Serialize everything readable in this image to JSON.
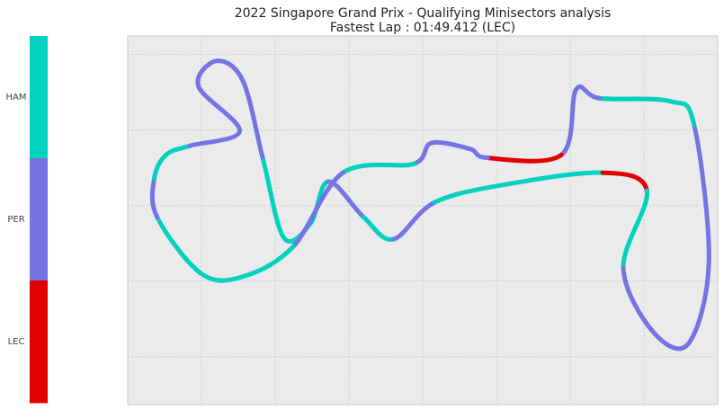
{
  "chart_data": {
    "type": "line",
    "title": "2022 Singapore Grand Prix - Qualifying Minisectors analysis",
    "subtitle": "Fastest Lap : 01:49.412 (LEC)",
    "xlabel": "",
    "ylabel": "",
    "grid": true,
    "axes_ticks_labels": false,
    "xlim": [
      0,
      1000
    ],
    "ylim": [
      0,
      620
    ],
    "colorbar": {
      "position": "left",
      "labels": [
        "HAM",
        "PER",
        "LEC"
      ],
      "colors": [
        "#00d2be",
        "#7474e5",
        "#e00000"
      ]
    },
    "drivers": {
      "HAM": "#00d2be",
      "PER": "#7474e5",
      "LEC": "#e00000"
    },
    "track_path": [
      [
        190,
        160
      ],
      [
        120,
        85
      ],
      [
        150,
        42
      ],
      [
        195,
        75
      ],
      [
        230,
        210
      ],
      [
        265,
        340
      ],
      [
        310,
        315
      ],
      [
        340,
        245
      ],
      [
        400,
        305
      ],
      [
        450,
        342
      ],
      [
        520,
        280
      ],
      [
        640,
        250
      ],
      [
        805,
        230
      ],
      [
        880,
        260
      ],
      [
        840,
        390
      ],
      [
        890,
        497
      ],
      [
        950,
        518
      ],
      [
        985,
        380
      ],
      [
        960,
        150
      ],
      [
        920,
        110
      ],
      [
        800,
        105
      ],
      [
        760,
        90
      ],
      [
        735,
        200
      ],
      [
        610,
        205
      ],
      [
        580,
        190
      ],
      [
        515,
        180
      ],
      [
        485,
        215
      ],
      [
        365,
        230
      ],
      [
        280,
        355
      ],
      [
        195,
        405
      ],
      [
        125,
        400
      ],
      [
        50,
        305
      ],
      [
        45,
        240
      ],
      [
        65,
        200
      ],
      [
        105,
        185
      ],
      [
        190,
        160
      ]
    ],
    "minisectors": [
      {
        "driver": "PER",
        "from": [
          190,
          160
        ],
        "to": [
          230,
          210
        ]
      },
      {
        "driver": "HAM",
        "from": [
          230,
          210
        ],
        "to": [
          340,
          245
        ]
      },
      {
        "driver": "PER",
        "from": [
          340,
          245
        ],
        "to": [
          400,
          305
        ]
      },
      {
        "driver": "HAM",
        "from": [
          400,
          305
        ],
        "to": [
          450,
          342
        ]
      },
      {
        "driver": "PER",
        "from": [
          450,
          342
        ],
        "to": [
          520,
          280
        ]
      },
      {
        "driver": "HAM",
        "from": [
          520,
          280
        ],
        "to": [
          805,
          230
        ]
      },
      {
        "driver": "LEC",
        "from": [
          805,
          230
        ],
        "to": [
          880,
          260
        ]
      },
      {
        "driver": "HAM",
        "from": [
          880,
          260
        ],
        "to": [
          840,
          390
        ]
      },
      {
        "driver": "PER",
        "from": [
          840,
          390
        ],
        "to": [
          960,
          150
        ]
      },
      {
        "driver": "HAM",
        "from": [
          960,
          150
        ],
        "to": [
          800,
          105
        ]
      },
      {
        "driver": "PER",
        "from": [
          800,
          105
        ],
        "to": [
          735,
          200
        ]
      },
      {
        "driver": "LEC",
        "from": [
          735,
          200
        ],
        "to": [
          610,
          205
        ]
      },
      {
        "driver": "PER",
        "from": [
          610,
          205
        ],
        "to": [
          485,
          215
        ]
      },
      {
        "driver": "HAM",
        "from": [
          485,
          215
        ],
        "to": [
          365,
          230
        ]
      },
      {
        "driver": "PER",
        "from": [
          365,
          230
        ],
        "to": [
          280,
          355
        ]
      },
      {
        "driver": "HAM",
        "from": [
          280,
          355
        ],
        "to": [
          50,
          305
        ]
      },
      {
        "driver": "PER",
        "from": [
          50,
          305
        ],
        "to": [
          45,
          240
        ]
      },
      {
        "driver": "HAM",
        "from": [
          45,
          240
        ],
        "to": [
          105,
          185
        ]
      },
      {
        "driver": "PER",
        "from": [
          105,
          185
        ],
        "to": [
          190,
          160
        ]
      }
    ]
  }
}
